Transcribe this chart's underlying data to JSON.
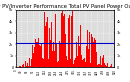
{
  "title": "Solar PV/Inverter Performance Total PV Panel Power Output",
  "title_fontsize": 3.8,
  "bar_color": "#ff0000",
  "bg_color": "#ffffff",
  "plot_bg": "#ffffff",
  "grid_color": "#ffffff",
  "hline_color": "#0000cc",
  "hline_y": 0.42,
  "ylim": [
    0,
    1.0
  ],
  "xlim": [
    0,
    520
  ],
  "num_points": 520,
  "seed": 7
}
